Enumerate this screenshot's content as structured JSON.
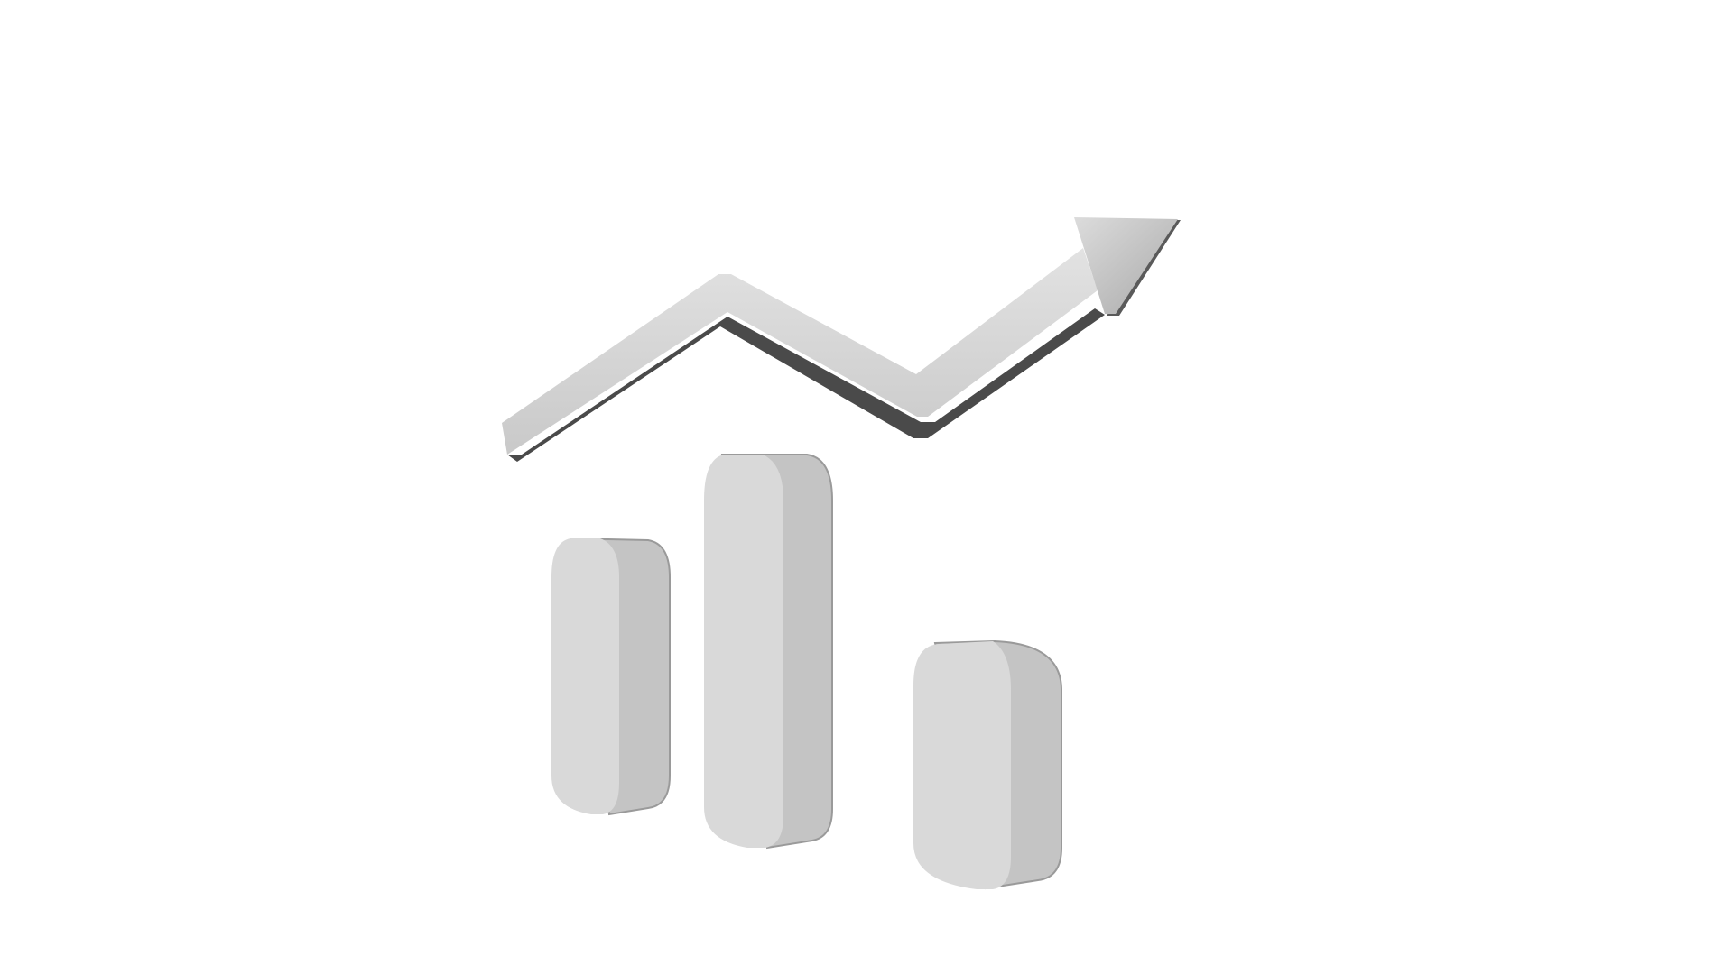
{
  "scene": {
    "icon_name": "trending-up-chart-icon",
    "background_color": "#ffffff",
    "bar_front_color": "#d9d9d9",
    "bar_side_color": "#c4c4c4",
    "bar_edge_color": "#9a9a9a",
    "arrow_color": "#d2d2d2",
    "arrow_shadow_color": "#4a4a4a",
    "bars": [
      {
        "name": "bar-left",
        "relative_height": 0.69
      },
      {
        "name": "bar-middle",
        "relative_height": 1.0
      },
      {
        "name": "bar-right",
        "relative_height": 0.63
      }
    ],
    "trend_direction": "up"
  }
}
